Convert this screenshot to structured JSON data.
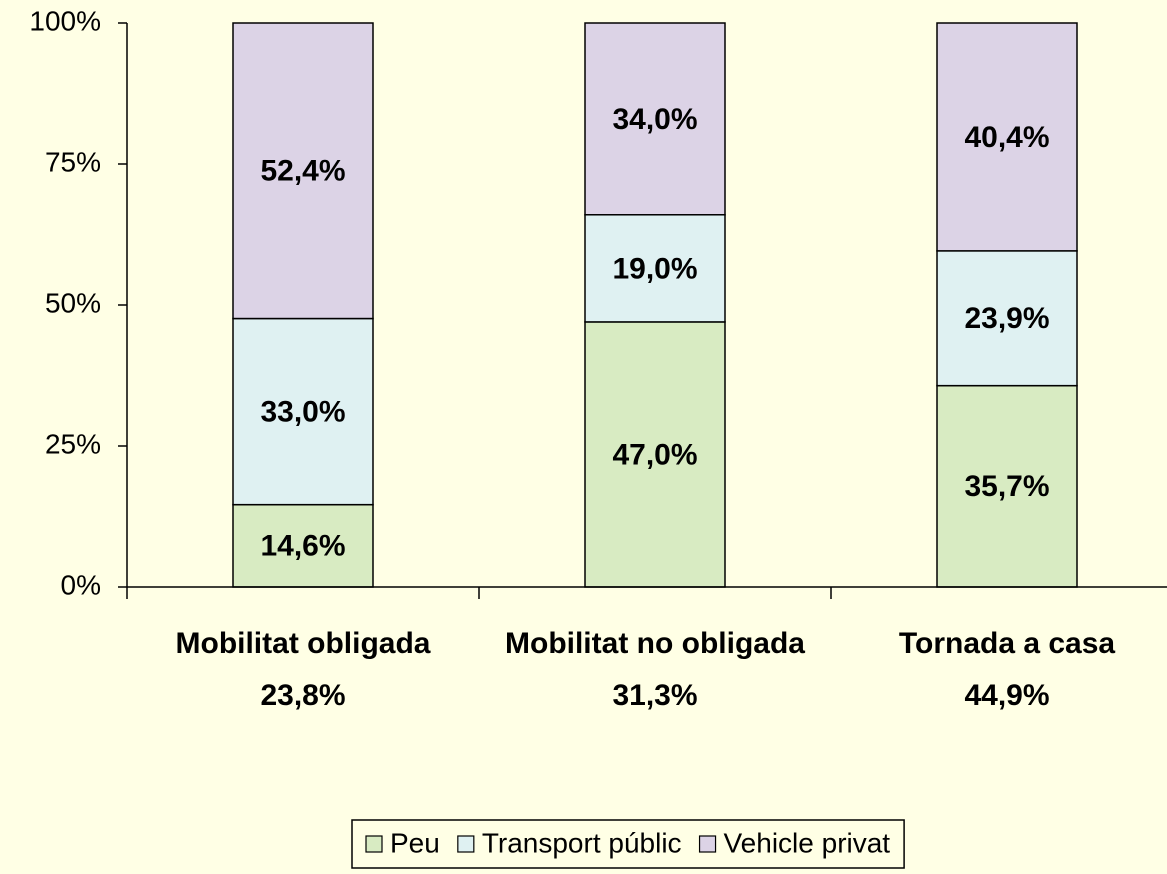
{
  "chart_data": {
    "type": "stacked_bar",
    "categories": [
      "Mobilitat obligada",
      "Mobilitat no obligada",
      "Tornada a casa"
    ],
    "category_subtitles": [
      "23,8%",
      "31,3%",
      "44,9%"
    ],
    "series": [
      {
        "name": "Peu",
        "color": "#d8ebc2",
        "values": [
          14.6,
          47.0,
          35.7
        ],
        "value_labels": [
          "14,6%",
          "47,0%",
          "35,7%"
        ]
      },
      {
        "name": "Transport públic",
        "color": "#dff1f2",
        "values": [
          33.0,
          19.0,
          23.9
        ],
        "value_labels": [
          "33,0%",
          "19,0%",
          "23,9%"
        ]
      },
      {
        "name": "Vehicle privat",
        "color": "#dcd3e6",
        "values": [
          52.4,
          34.0,
          40.4
        ],
        "value_labels": [
          "52,4%",
          "34,0%",
          "40,4%"
        ]
      }
    ],
    "ylim": [
      0,
      100
    ],
    "yticks": [
      {
        "value": 0,
        "label": "0%"
      },
      {
        "value": 25,
        "label": "25%"
      },
      {
        "value": 50,
        "label": "50%"
      },
      {
        "value": 75,
        "label": "75%"
      },
      {
        "value": 100,
        "label": "100%"
      }
    ],
    "legend": "bottom"
  }
}
